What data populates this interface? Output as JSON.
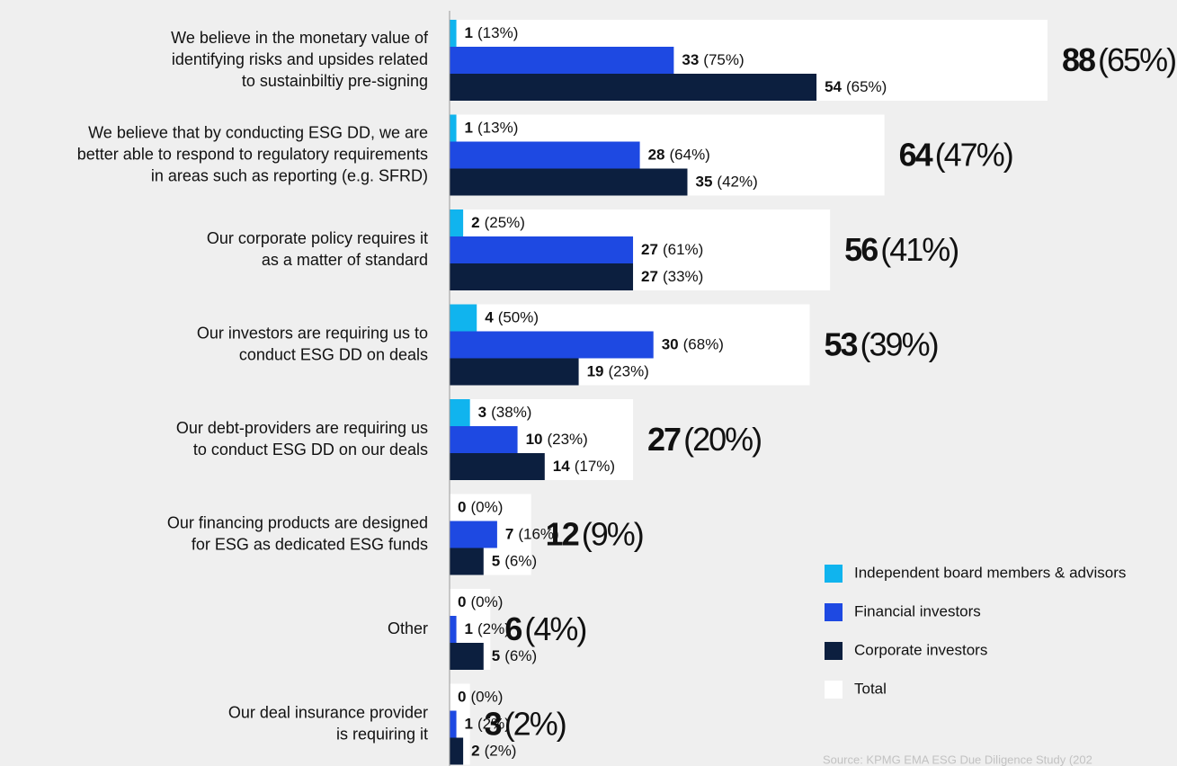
{
  "chart_data": {
    "type": "grouped-bar-with-total",
    "categories": [
      [
        "We believe in the monetary value of",
        "identifying risks and upsides related",
        "to sustainbiltiy pre-signing"
      ],
      [
        "We believe that by conducting ESG DD, we are",
        "better able to respond to regulatory requirements",
        "in areas such as reporting (e.g. SFRD)"
      ],
      [
        "Our corporate policy requires it",
        "as a matter of standard"
      ],
      [
        "Our investors are requiring us to",
        "conduct ESG DD on deals"
      ],
      [
        "Our debt-providers are requiring us",
        "to conduct ESG DD on our deals"
      ],
      [
        "Our financing products are designed",
        "for ESG as dedicated ESG funds"
      ],
      [
        "Other"
      ],
      [
        "Our deal insurance provider",
        "is requiring it"
      ]
    ],
    "series": [
      {
        "name": "Independent board members & advisors",
        "color": "#10b4ee",
        "values": [
          1,
          1,
          2,
          4,
          3,
          0,
          0,
          0
        ],
        "share_labels": [
          "(13%)",
          "(13%)",
          "(25%)",
          "(50%)",
          "(38%)",
          "(0%)",
          "(0%)",
          "(0%)"
        ]
      },
      {
        "name": "Financial investors",
        "color": "#1e49e2",
        "values": [
          33,
          28,
          27,
          30,
          10,
          7,
          1,
          1
        ],
        "share_labels": [
          "(75%)",
          "(64%)",
          "(61%)",
          "(68%)",
          "(23%)",
          "(16%)",
          "(2%)",
          "(2%)"
        ]
      },
      {
        "name": "Corporate investors",
        "color": "#0c1f3f",
        "values": [
          54,
          35,
          27,
          19,
          14,
          5,
          5,
          2
        ],
        "share_labels": [
          "(65%)",
          "(42%)",
          "(33%)",
          "(23%)",
          "(17%)",
          "(6%)",
          "(6%)",
          "(2%)"
        ]
      },
      {
        "name": "Total",
        "color": "#ffffff",
        "total": true,
        "values": [
          88,
          64,
          56,
          53,
          27,
          12,
          6,
          3
        ],
        "share_labels": [
          "(65%)",
          "(47%)",
          "(41%)",
          "(39%)",
          "(20%)",
          "(9%)",
          "(4%)",
          "(2%)"
        ]
      }
    ],
    "xlim": [
      0,
      88
    ],
    "source": "Source: KPMG EMA ESG Due Diligence Study (202"
  }
}
